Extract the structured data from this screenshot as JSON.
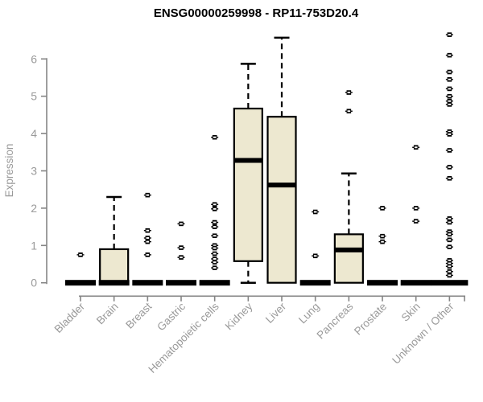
{
  "chart_data": {
    "type": "boxplot",
    "title": "ENSG00000259998 - RP11-753D20.4",
    "ylabel": "Expression",
    "xlabel": "",
    "ylim": [
      0,
      6
    ],
    "yticks": [
      0,
      1,
      2,
      3,
      4,
      5,
      6
    ],
    "grid": false,
    "legend": false,
    "box_fill": "#ede8d0",
    "box_stroke": "#000000",
    "axis_color": "#858585",
    "text_color": "#9a9a9a",
    "groups": [
      {
        "label": "Bladder",
        "q1": 0,
        "median": 0,
        "q3": 0,
        "whisker_low": 0,
        "whisker_high": 0,
        "outliers": [
          0.75
        ]
      },
      {
        "label": "Brain",
        "q1": 0,
        "median": 0,
        "q3": 0.9,
        "whisker_low": 0,
        "whisker_high": 2.3,
        "outliers": []
      },
      {
        "label": "Breast",
        "q1": 0,
        "median": 0,
        "q3": 0,
        "whisker_low": 0,
        "whisker_high": 0,
        "outliers": [
          2.35,
          1.4,
          1.2,
          1.1,
          0.75
        ]
      },
      {
        "label": "Gastric",
        "q1": 0,
        "median": 0,
        "q3": 0,
        "whisker_low": 0,
        "whisker_high": 0,
        "outliers": [
          1.58,
          0.94,
          0.68
        ]
      },
      {
        "label": "Hematopoietic cells",
        "q1": 0,
        "median": 0,
        "q3": 0,
        "whisker_low": 0,
        "whisker_high": 0,
        "outliers": [
          3.9,
          2.1,
          1.98,
          1.62,
          1.5,
          1.26,
          1.0,
          0.93,
          0.78,
          0.64,
          0.55,
          0.4
        ]
      },
      {
        "label": "Kidney",
        "q1": 0.58,
        "median": 3.28,
        "q3": 4.67,
        "whisker_low": 0,
        "whisker_high": 5.87,
        "outliers": []
      },
      {
        "label": "Liver",
        "q1": 0,
        "median": 2.62,
        "q3": 4.45,
        "whisker_low": 0,
        "whisker_high": 6.57,
        "outliers": []
      },
      {
        "label": "Lung",
        "q1": 0,
        "median": 0,
        "q3": 0,
        "whisker_low": 0,
        "whisker_high": 0,
        "outliers": [
          1.9,
          0.72
        ]
      },
      {
        "label": "Pancreas",
        "q1": 0,
        "median": 0.88,
        "q3": 1.3,
        "whisker_low": 0,
        "whisker_high": 2.93,
        "outliers": [
          5.1,
          4.6
        ]
      },
      {
        "label": "Prostate",
        "q1": 0,
        "median": 0,
        "q3": 0,
        "whisker_low": 0,
        "whisker_high": 0,
        "outliers": [
          2.0,
          1.25,
          1.1
        ]
      },
      {
        "label": "Skin",
        "q1": 0,
        "median": 0,
        "q3": 0,
        "whisker_low": 0,
        "whisker_high": 0,
        "outliers": [
          3.63,
          2.0,
          1.65
        ]
      },
      {
        "label": "Unknown / Other",
        "q1": 0,
        "median": 0,
        "q3": 0,
        "whisker_low": 0,
        "whisker_high": 0,
        "outliers": [
          6.65,
          6.1,
          5.65,
          5.45,
          5.2,
          5.0,
          4.87,
          4.78,
          4.05,
          3.98,
          3.55,
          3.1,
          2.8,
          1.72,
          1.62,
          1.37,
          1.3,
          1.15,
          0.96,
          0.6,
          0.52,
          0.44,
          0.3,
          0.2
        ],
        "wide_bar": true
      }
    ]
  }
}
